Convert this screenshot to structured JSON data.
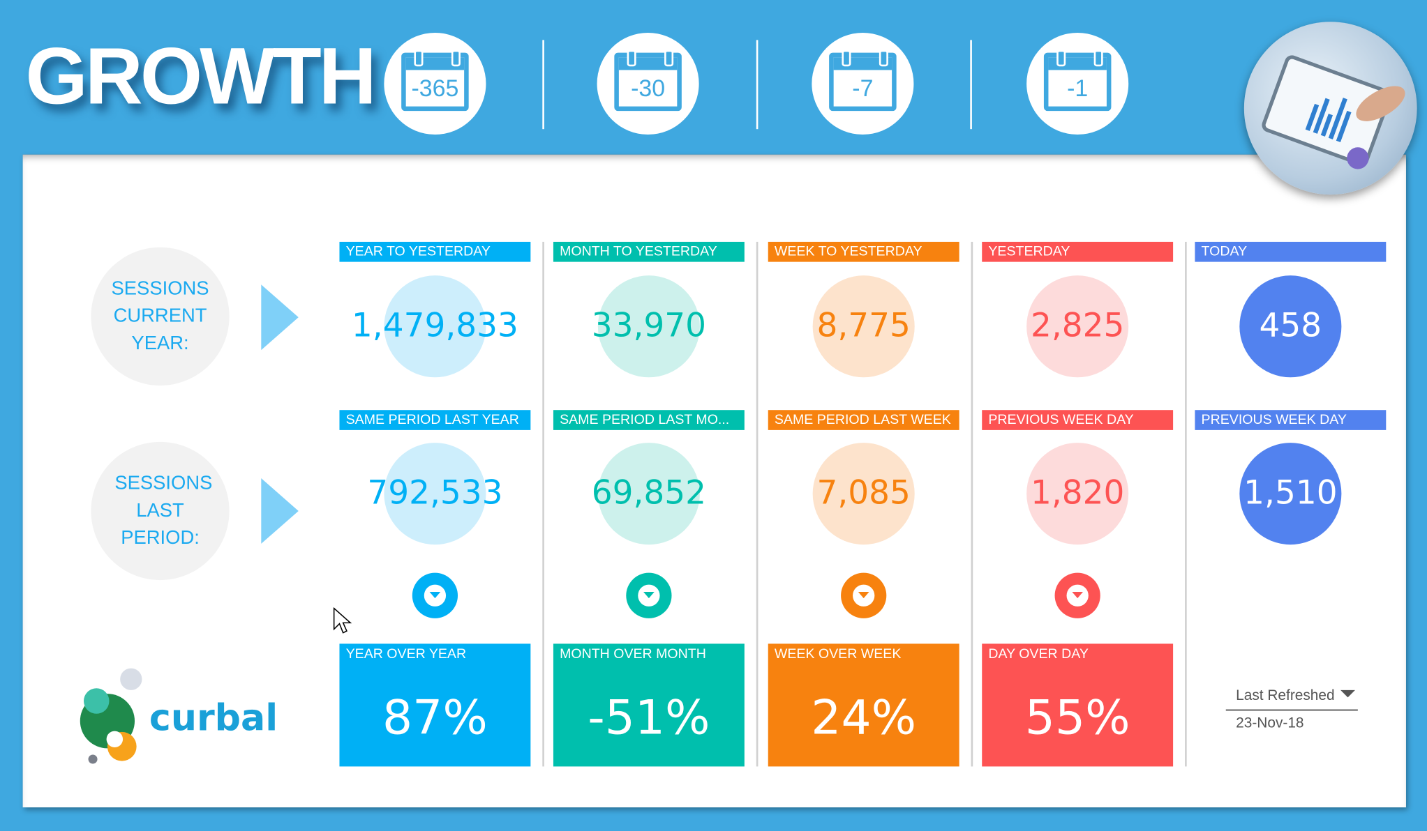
{
  "header": {
    "title": "GROWTH",
    "calendars": [
      {
        "label": "-365"
      },
      {
        "label": "-30"
      },
      {
        "label": "-7"
      },
      {
        "label": "-1"
      }
    ]
  },
  "rows": {
    "current": "SESSIONS CURRENT YEAR:",
    "last": "SESSIONS LAST PERIOD:"
  },
  "columns": [
    {
      "top_label": "YEAR TO YESTERDAY",
      "top_value": "1,479,833",
      "bottom_label": "SAME PERIOD LAST YEAR",
      "bottom_value": "792,533",
      "kpi_label": "YEAR OVER YEAR",
      "kpi_value": "87%",
      "color": "#00b0f5",
      "light": "#cdeefc"
    },
    {
      "top_label": "MONTH TO YESTERDAY",
      "top_value": "33,970",
      "bottom_label": "SAME PERIOD LAST MO...",
      "bottom_value": "69,852",
      "kpi_label": "MONTH OVER MONTH",
      "kpi_value": "-51%",
      "color": "#00bfad",
      "light": "#cdf1ec"
    },
    {
      "top_label": "WEEK TO YESTERDAY",
      "top_value": "8,775",
      "bottom_label": "SAME PERIOD LAST WEEK",
      "bottom_value": "7,085",
      "kpi_label": "WEEK OVER WEEK",
      "kpi_value": "24%",
      "color": "#f7820f",
      "light": "#fde3cc"
    },
    {
      "top_label": "YESTERDAY",
      "top_value": "2,825",
      "bottom_label": "PREVIOUS WEEK DAY",
      "bottom_value": "1,820",
      "kpi_label": "DAY OVER DAY",
      "kpi_value": "55%",
      "color": "#fd5353",
      "light": "#fddbdb"
    },
    {
      "top_label": "TODAY",
      "top_value": "458",
      "bottom_label": "PREVIOUS WEEK DAY",
      "bottom_value": "1,510",
      "color": "#5282ef",
      "light": "#5282ef"
    }
  ],
  "brand": {
    "name": "curbal"
  },
  "refresh": {
    "label": "Last Refreshed",
    "value": "23-Nov-18"
  }
}
